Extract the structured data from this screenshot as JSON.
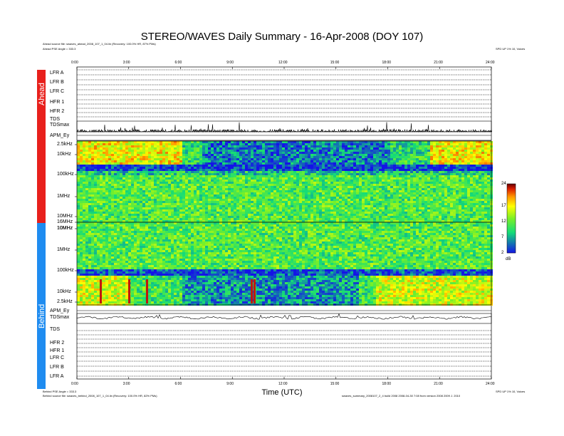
{
  "title": "STEREO/WAVES Daily Summary - 16-Apr-2008 (DOY 107)",
  "header": {
    "ahead_source": "Ahead source file: swaves_ahead_2008_107_1_04.lin (Recovery: 100.0% HR, 87% PMs)",
    "ahead_pse": "Ahead PSE Angle = 333.3",
    "ahead_orbit": "SPD UP 1% 10, Voices"
  },
  "footer": {
    "behind_pse": "Behind PSE Angle = 333.3",
    "behind_source": "Behind source file: swaves_behind_2008_107_1_04.lin (Recovery: 100.0% HR, 82% PMs)",
    "behind_orbit": "SPD UP 1% 10, Voices",
    "credit": "swaves_summary_2008107_2_4 build 2008 2008-04-30 7:08 from version 2008 2009 J. 2010"
  },
  "xlabel": "Time (UTC)",
  "spacecraft": {
    "ahead": "Ahead",
    "behind": "Behind",
    "ahead_color": "#e8201c",
    "behind_color": "#1f8cf0"
  },
  "ahead_rows": [
    "LFR A",
    "LFR B",
    "LFR C",
    "HFR 1",
    "HFR 2",
    "TDS",
    "TDSmax",
    "APM_Ey"
  ],
  "behind_rows": [
    "APM_Ey",
    "TDSmax",
    "TDS",
    "HFR 2",
    "HFR 1",
    "LFR C",
    "LFR B",
    "LFR A"
  ],
  "colorbar": {
    "ticks": [
      "24",
      "17",
      "12",
      "7",
      "2"
    ],
    "unit": "dB",
    "range": [
      2,
      24
    ]
  },
  "chart_data": [
    {
      "type": "heatmap",
      "title": "Ahead",
      "x": [
        "0:00",
        "3:00",
        "6:00",
        "9:00",
        "12:00",
        "15:00",
        "18:00",
        "21:00",
        "24:00"
      ],
      "y_ticks": [
        "2.5kHz",
        "10kHz",
        "100kHz",
        "1MHz",
        "10MHz",
        "16MHz"
      ],
      "scale": "log",
      "z_range": [
        2,
        24
      ]
    },
    {
      "type": "heatmap",
      "title": "Behind",
      "x": [
        "0:00",
        "3:00",
        "6:00",
        "9:00",
        "12:00",
        "15:00",
        "18:00",
        "21:00",
        "24:00"
      ],
      "y_ticks": [
        "10MHz",
        "1MHz",
        "100kHz",
        "10kHz",
        "2.5kHz"
      ],
      "scale": "log",
      "z_range": [
        2,
        24
      ]
    }
  ]
}
